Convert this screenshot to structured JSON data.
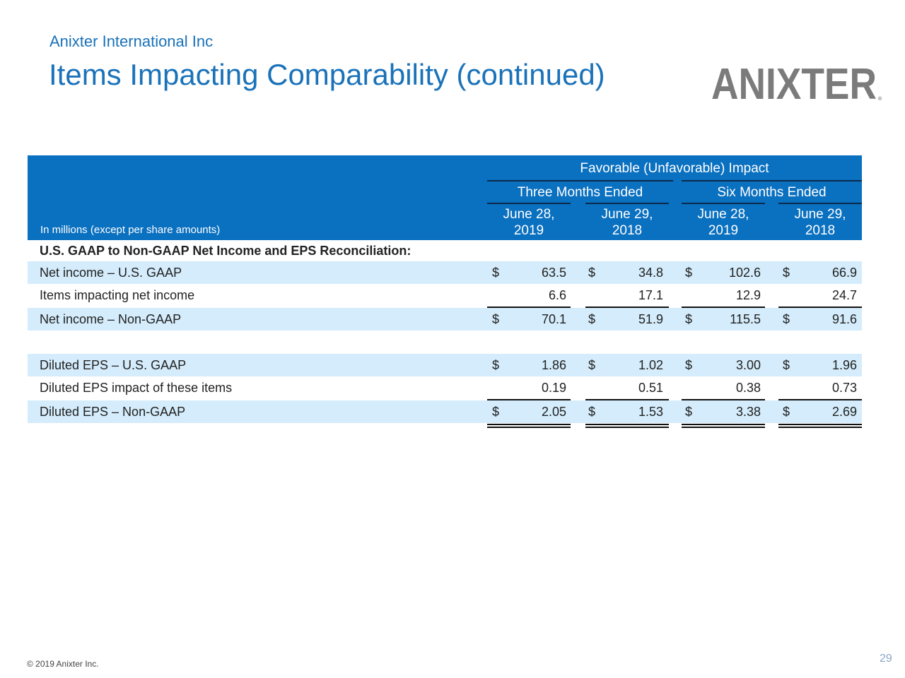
{
  "header": {
    "company": "Anixter International Inc",
    "title": "Items Impacting Comparability (continued)",
    "logo_text": "ANIXTER"
  },
  "table": {
    "group_heading": "Favorable (Unfavorable) Impact",
    "periods": [
      "Three Months Ended",
      "Six Months Ended"
    ],
    "columns": [
      {
        "date": "June 28,",
        "year": "2019"
      },
      {
        "date": "June 29,",
        "year": "2018"
      },
      {
        "date": "June 28,",
        "year": "2019"
      },
      {
        "date": "June 29,",
        "year": "2018"
      }
    ],
    "units": "In millions (except per share amounts)",
    "section_title": "U.S. GAAP to Non-GAAP Net Income and EPS Reconciliation:",
    "rows": [
      {
        "label": "Net income – U.S. GAAP",
        "currency": "$",
        "values": [
          "63.5",
          "34.8",
          "102.6",
          "66.9"
        ]
      },
      {
        "label": "Items impacting net income",
        "currency": "",
        "values": [
          "6.6",
          "17.1",
          "12.9",
          "24.7"
        ]
      },
      {
        "label": "Net income – Non-GAAP",
        "currency": "$",
        "values": [
          "70.1",
          "51.9",
          "115.5",
          "91.6"
        ]
      },
      {
        "label": "Diluted EPS – U.S. GAAP",
        "currency": "$",
        "values": [
          "1.86",
          "1.02",
          "3.00",
          "1.96"
        ]
      },
      {
        "label": "Diluted EPS impact of these items",
        "currency": "",
        "values": [
          "0.19",
          "0.51",
          "0.38",
          "0.73"
        ]
      },
      {
        "label": "Diluted EPS – Non-GAAP",
        "currency": "$",
        "values": [
          "2.05",
          "1.53",
          "3.38",
          "2.69"
        ]
      }
    ]
  },
  "footer": {
    "copyright": "© 2019 Anixter Inc.",
    "page_number": "29"
  },
  "colors": {
    "title_blue": "#1a72b9",
    "header_blue": "#0a70c0",
    "row_highlight": "#d4ecfb",
    "logo_gray": "#7b7b7b"
  }
}
